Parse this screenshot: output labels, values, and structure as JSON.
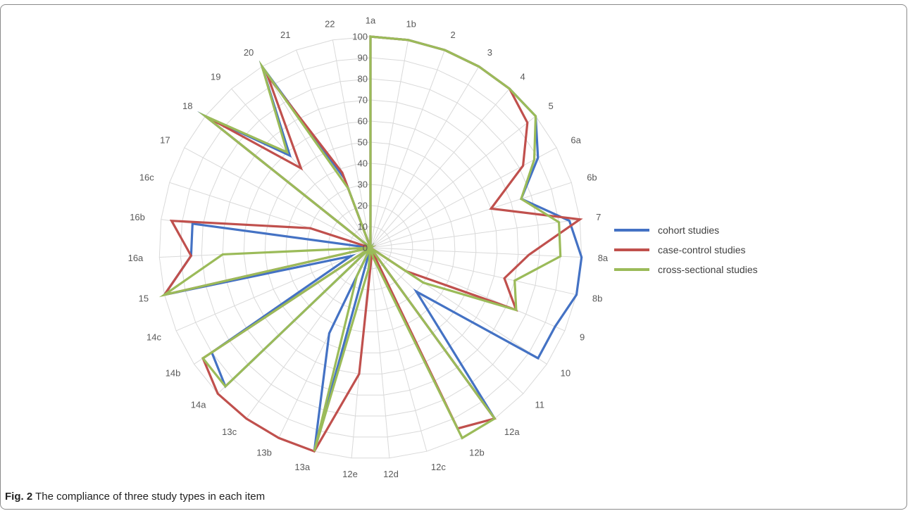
{
  "caption": {
    "prefix": "Fig. 2",
    "text": "The compliance of three study types in each item"
  },
  "chart_data": {
    "type": "radar",
    "r_range": [
      0,
      100
    ],
    "r_ticks": [
      0,
      10,
      20,
      30,
      40,
      50,
      60,
      70,
      80,
      90,
      100
    ],
    "categories": [
      "1a",
      "1b",
      "2",
      "3",
      "4",
      "5",
      "6a",
      "6b",
      "7",
      "8a",
      "8b",
      "9",
      "10",
      "11",
      "12a",
      "12b",
      "12c",
      "12d",
      "12e",
      "13a",
      "13b",
      "13c",
      "14a",
      "14b",
      "14c",
      "15",
      "16a",
      "16b",
      "16c",
      "17",
      "18",
      "19",
      "20",
      "21",
      "22"
    ],
    "legend_position": "right",
    "series": [
      {
        "name": "cohort studies",
        "color": "#4472c4",
        "values": [
          100,
          100,
          100,
          100,
          100,
          100,
          90,
          75,
          95,
          100,
          100,
          95,
          95,
          30,
          100,
          0,
          0,
          0,
          0,
          100,
          45,
          0,
          95,
          90,
          10,
          100,
          85,
          85,
          0,
          0,
          100,
          58,
          100,
          35,
          0
        ]
      },
      {
        "name": "case-control studies",
        "color": "#c0504d",
        "values": [
          100,
          100,
          100,
          100,
          100,
          95,
          82,
          60,
          100,
          75,
          65,
          75,
          20,
          0,
          100,
          95,
          0,
          5,
          60,
          100,
          100,
          100,
          100,
          95,
          0,
          100,
          85,
          95,
          30,
          0,
          100,
          50,
          95,
          38,
          0
        ]
      },
      {
        "name": "cross-sectional studies",
        "color": "#9bbb59",
        "values": [
          100,
          100,
          100,
          100,
          100,
          100,
          88,
          75,
          90,
          90,
          70,
          75,
          30,
          0,
          100,
          100,
          5,
          0,
          10,
          100,
          15,
          0,
          95,
          95,
          0,
          100,
          70,
          0,
          0,
          0,
          100,
          60,
          100,
          30,
          0
        ]
      }
    ]
  }
}
